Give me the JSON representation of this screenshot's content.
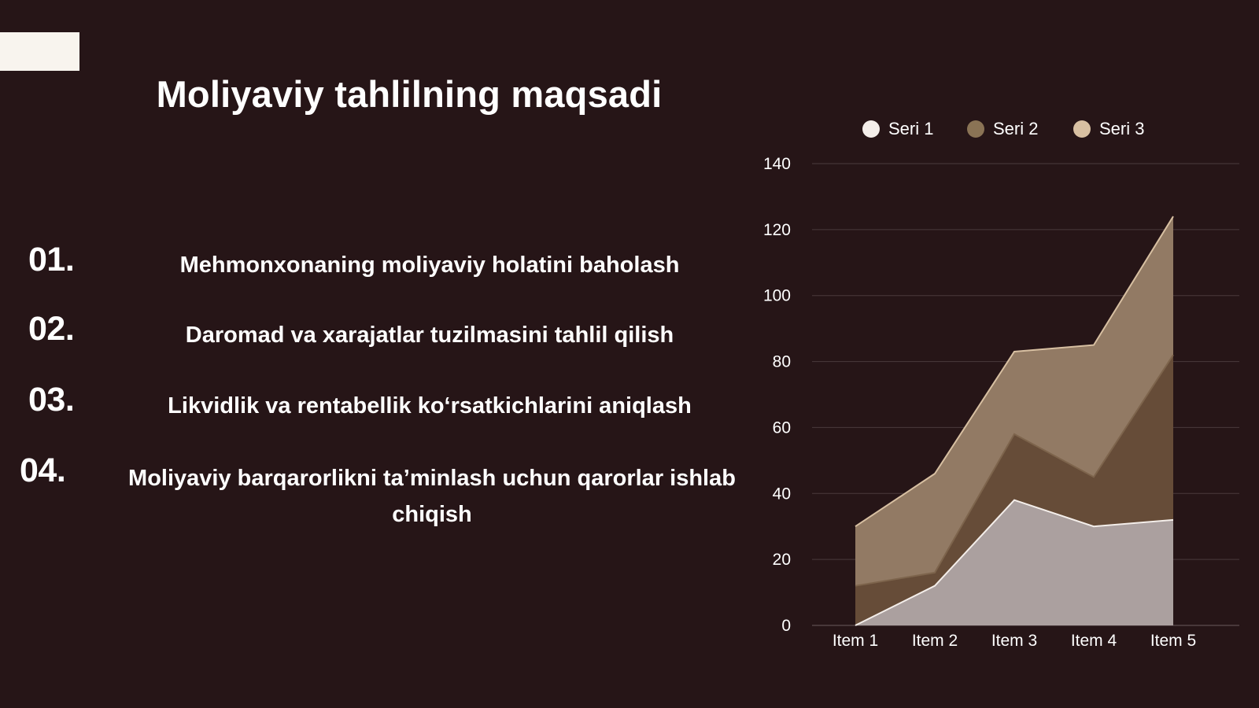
{
  "slide": {
    "title": "Moliyaviy tahlilning maqsadi",
    "items": [
      {
        "number": "01.",
        "text": "Mehmonxonaning moliyaviy holatini baholash"
      },
      {
        "number": "02.",
        "text": "Daromad va xarajatlar tuzilmasini tahlil qilish"
      },
      {
        "number": "03.",
        "text": "Likvidlik va rentabellik ko‘rsatkichlarini aniqlash"
      },
      {
        "number": "04.",
        "text": "Moliyaviy barqarorlikni ta’minlash uchun qarorlar ishlab chiqish"
      }
    ]
  },
  "colors": {
    "background": "#261517",
    "accent_block": "#f8f4ee",
    "seri1": "#f4eeea",
    "seri2": "#8a7355",
    "seri3": "#d8c0a2"
  },
  "chart_data": {
    "type": "area",
    "categories": [
      "Item 1",
      "Item 2",
      "Item 3",
      "Item 4",
      "Item 5"
    ],
    "series": [
      {
        "name": "Seri 1",
        "values": [
          0,
          12,
          38,
          30,
          32
        ],
        "color": "#f4eeea"
      },
      {
        "name": "Seri 2",
        "values": [
          12,
          16,
          58,
          45,
          82
        ],
        "color": "#8a7355"
      },
      {
        "name": "Seri 3",
        "values": [
          30,
          46,
          83,
          85,
          124
        ],
        "color": "#d8c0a2"
      }
    ],
    "ylim": [
      0,
      140
    ],
    "yticks": [
      "0",
      "20",
      "40",
      "60",
      "80",
      "100",
      "120",
      "140"
    ],
    "grid": true,
    "legend": "top"
  }
}
